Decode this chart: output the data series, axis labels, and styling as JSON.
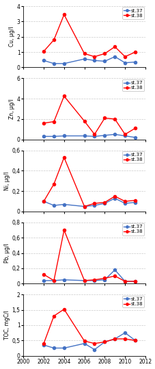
{
  "Cu": {
    "ylabel": "Cu, µg/l",
    "ylim": [
      0,
      4
    ],
    "yticks": [
      0,
      1,
      2,
      3,
      4
    ],
    "st37_x": [
      2002,
      2003,
      2004,
      2006,
      2007,
      2008,
      2009,
      2010,
      2011
    ],
    "st37_y": [
      0.45,
      0.25,
      0.25,
      0.55,
      0.45,
      0.4,
      0.7,
      0.3,
      0.35
    ],
    "st38_x": [
      2002,
      2003,
      2004,
      2006,
      2007,
      2008,
      2009,
      2010,
      2011
    ],
    "st38_y": [
      1.05,
      1.8,
      3.45,
      0.9,
      0.7,
      0.9,
      1.35,
      0.7,
      1.0
    ]
  },
  "Zn": {
    "ylabel": "Zn, µg/l",
    "ylim": [
      0,
      6
    ],
    "yticks": [
      0,
      2,
      4,
      6
    ],
    "st37_x": [
      2002,
      2003,
      2004,
      2006,
      2007,
      2008,
      2009,
      2010,
      2011
    ],
    "st37_y": [
      0.3,
      0.3,
      0.35,
      0.35,
      0.3,
      0.4,
      0.5,
      0.35,
      0.2
    ],
    "st38_x": [
      2002,
      2003,
      2004,
      2006,
      2007,
      2008,
      2009,
      2010,
      2011
    ],
    "st38_y": [
      1.6,
      1.75,
      4.25,
      1.8,
      0.5,
      2.1,
      2.0,
      0.5,
      1.1
    ]
  },
  "Ni": {
    "ylabel": "Ni, µg/l",
    "ylim": [
      0,
      0.6
    ],
    "yticks": [
      0,
      0.2,
      0.4,
      0.6
    ],
    "st37_x": [
      2002,
      2003,
      2004,
      2006,
      2007,
      2008,
      2009,
      2010,
      2011
    ],
    "st37_y": [
      0.1,
      0.06,
      0.07,
      0.05,
      0.06,
      0.08,
      0.13,
      0.08,
      0.09
    ],
    "st38_x": [
      2002,
      2003,
      2004,
      2006,
      2007,
      2008,
      2009,
      2010,
      2011
    ],
    "st38_y": [
      0.1,
      0.27,
      0.53,
      0.05,
      0.08,
      0.09,
      0.15,
      0.1,
      0.11
    ]
  },
  "Pb": {
    "ylabel": "Pb, µg/l",
    "ylim": [
      0,
      0.8
    ],
    "yticks": [
      0,
      0.2,
      0.4,
      0.6,
      0.8
    ],
    "st37_x": [
      2002,
      2003,
      2004,
      2006,
      2007,
      2008,
      2009,
      2010,
      2011
    ],
    "st37_y": [
      0.04,
      0.04,
      0.05,
      0.04,
      0.04,
      0.05,
      0.18,
      0.03,
      0.03
    ],
    "st38_x": [
      2002,
      2003,
      2004,
      2006,
      2007,
      2008,
      2009,
      2010,
      2011
    ],
    "st38_y": [
      0.12,
      0.04,
      0.7,
      0.04,
      0.05,
      0.07,
      0.1,
      0.03,
      0.03
    ]
  },
  "TOC": {
    "ylabel": "TOC, mgC/l",
    "ylim": [
      0,
      2
    ],
    "yticks": [
      0,
      0.5,
      1.0,
      1.5,
      2.0
    ],
    "st37_x": [
      2002,
      2003,
      2004,
      2006,
      2007,
      2008,
      2009,
      2010,
      2011
    ],
    "st37_y": [
      0.35,
      0.25,
      0.25,
      0.4,
      0.2,
      0.45,
      0.55,
      0.75,
      0.5
    ],
    "st38_x": [
      2002,
      2003,
      2004,
      2006,
      2007,
      2008,
      2009,
      2010,
      2011
    ],
    "st38_y": [
      0.4,
      1.3,
      1.52,
      0.48,
      0.4,
      0.45,
      0.55,
      0.55,
      0.5
    ]
  },
  "color_st37": "#4472C4",
  "color_st38": "#FF0000",
  "xlim": [
    2000,
    2012
  ],
  "xticks": [
    2000,
    2002,
    2004,
    2006,
    2008,
    2010,
    2012
  ],
  "background": "#FFFFFF",
  "grid_color": "#BBBBBB"
}
